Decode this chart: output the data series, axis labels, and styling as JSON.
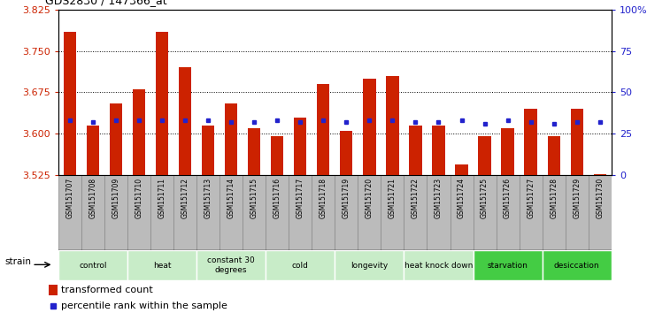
{
  "title": "GDS2830 / 147366_at",
  "samples": [
    "GSM151707",
    "GSM151708",
    "GSM151709",
    "GSM151710",
    "GSM151711",
    "GSM151712",
    "GSM151713",
    "GSM151714",
    "GSM151715",
    "GSM151716",
    "GSM151717",
    "GSM151718",
    "GSM151719",
    "GSM151720",
    "GSM151721",
    "GSM151722",
    "GSM151723",
    "GSM151724",
    "GSM151725",
    "GSM151726",
    "GSM151727",
    "GSM151728",
    "GSM151729",
    "GSM151730"
  ],
  "bar_values": [
    3.785,
    3.615,
    3.655,
    3.68,
    3.785,
    3.72,
    3.615,
    3.655,
    3.61,
    3.595,
    3.63,
    3.69,
    3.605,
    3.7,
    3.705,
    3.615,
    3.615,
    3.545,
    3.595,
    3.61,
    3.645,
    3.595,
    3.645,
    3.527
  ],
  "percentile_values": [
    3.625,
    3.622,
    3.624,
    3.624,
    3.625,
    3.624,
    3.624,
    3.622,
    3.622,
    3.624,
    3.622,
    3.624,
    3.622,
    3.624,
    3.624,
    3.622,
    3.622,
    3.624,
    3.618,
    3.624,
    3.622,
    3.618,
    3.622,
    3.622
  ],
  "groups": [
    {
      "label": "control",
      "start": 0,
      "end": 2,
      "color": "#c8ecc8"
    },
    {
      "label": "heat",
      "start": 3,
      "end": 5,
      "color": "#c8ecc8"
    },
    {
      "label": "constant 30\ndegrees",
      "start": 6,
      "end": 8,
      "color": "#c8ecc8"
    },
    {
      "label": "cold",
      "start": 9,
      "end": 11,
      "color": "#c8ecc8"
    },
    {
      "label": "longevity",
      "start": 12,
      "end": 14,
      "color": "#c8ecc8"
    },
    {
      "label": "heat knock down",
      "start": 15,
      "end": 17,
      "color": "#c8ecc8"
    },
    {
      "label": "starvation",
      "start": 18,
      "end": 20,
      "color": "#44cc44"
    },
    {
      "label": "desiccation",
      "start": 21,
      "end": 23,
      "color": "#44cc44"
    }
  ],
  "bar_color": "#cc2200",
  "dot_color": "#2222cc",
  "ymin": 3.525,
  "ymax": 3.825,
  "yticks": [
    3.525,
    3.6,
    3.675,
    3.75,
    3.825
  ],
  "right_yticks": [
    0,
    25,
    50,
    75,
    100
  ],
  "right_ytick_labels": [
    "0",
    "25",
    "50",
    "75",
    "100%"
  ],
  "grid_values": [
    3.6,
    3.675,
    3.75
  ],
  "bar_width": 0.55,
  "tick_bg_color": "#bbbbbb",
  "tick_border_color": "#888888"
}
